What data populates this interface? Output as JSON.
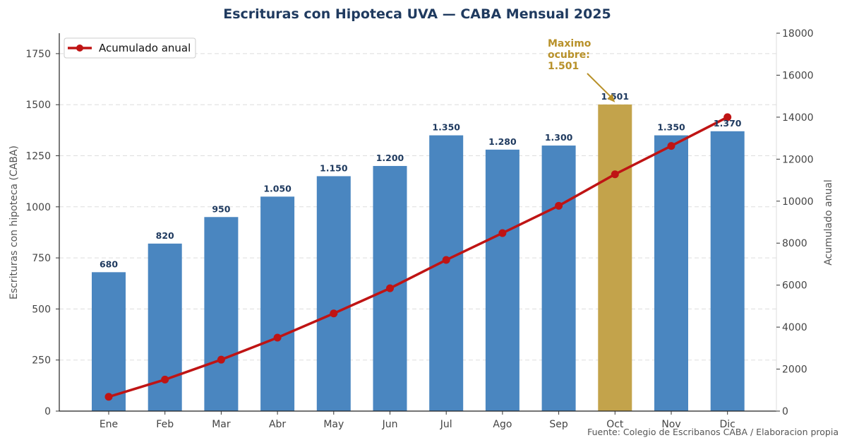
{
  "chart_data": {
    "type": "bar",
    "title": "Escrituras con Hipoteca UVA — CABA Mensual 2025",
    "categories": [
      "Ene",
      "Feb",
      "Mar",
      "Abr",
      "May",
      "Jun",
      "Jul",
      "Ago",
      "Sep",
      "Oct",
      "Nov",
      "Dic"
    ],
    "series": [
      {
        "type": "bar",
        "values": [
          680,
          820,
          950,
          1050,
          1150,
          1200,
          1350,
          1280,
          1300,
          1501,
          1350,
          1370
        ],
        "data_labels": [
          "680",
          "820",
          "950",
          "1.050",
          "1.150",
          "1.200",
          "1.350",
          "1.280",
          "1.300",
          "1.501",
          "1.350",
          "1.370"
        ],
        "color": "#4a86c0",
        "highlight_index": 9,
        "highlight_color": "#c3a34b",
        "axis": "left"
      },
      {
        "type": "line",
        "name": "Acumulado anual",
        "values": [
          680,
          1500,
          2450,
          3500,
          4650,
          5850,
          7200,
          8480,
          9780,
          11281,
          12631,
          14001
        ],
        "color": "#bf1414",
        "axis": "right"
      }
    ],
    "ylabel": "Escrituras con hipoteca (CABA)",
    "ylim": [
      0,
      1850
    ],
    "yticks": [
      "0",
      "250",
      "500",
      "750",
      "1000",
      "1250",
      "1500",
      "1750"
    ],
    "ytick_values": [
      0,
      250,
      500,
      750,
      1000,
      1250,
      1500,
      1750
    ],
    "y2label": "Acumulado anual",
    "y2lim": [
      0,
      18000
    ],
    "y2ticks": [
      "0",
      "2000",
      "4000",
      "6000",
      "8000",
      "10000",
      "12000",
      "14000",
      "16000",
      "18000"
    ],
    "y2tick_values": [
      0,
      2000,
      4000,
      6000,
      8000,
      10000,
      12000,
      14000,
      16000,
      18000
    ],
    "grid": true,
    "legend_position": "top-left",
    "annotation": {
      "lines": [
        "Maximo",
        "ocubre:",
        "1.501"
      ],
      "target_index": 9,
      "color": "#b8912a"
    },
    "source": "Fuente: Colegio de Escribanos CABA / Elaboracion propia"
  }
}
